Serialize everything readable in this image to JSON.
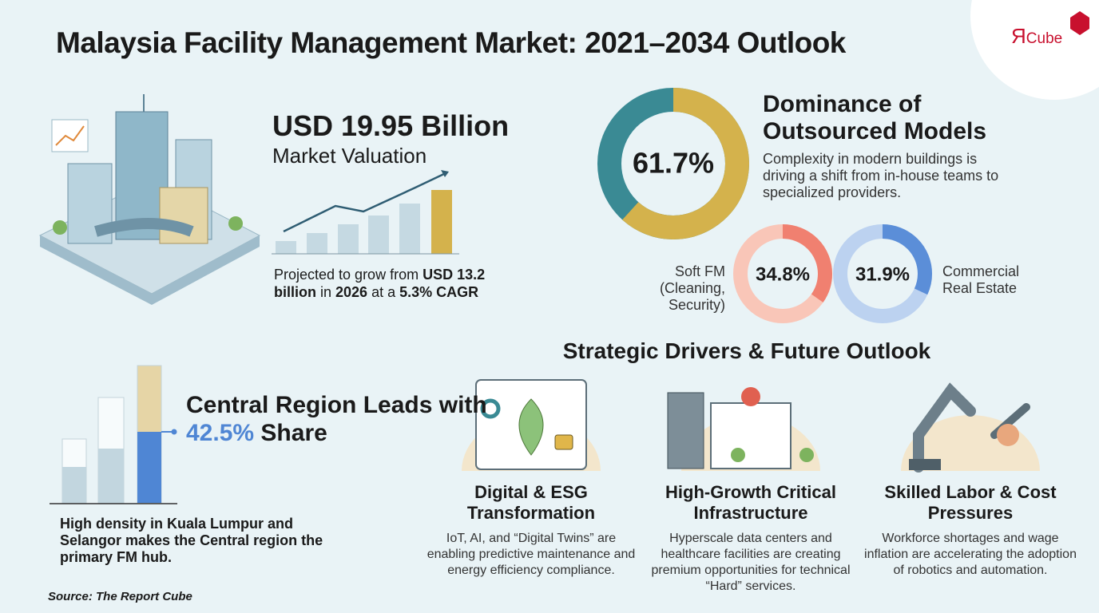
{
  "title": "Malaysia Facility Management Market: 2021–2034 Outlook",
  "logo": {
    "mark": "Я",
    "text": "Cube"
  },
  "valuation": {
    "amount": "USD 19.95 Billion",
    "label": "Market Valuation",
    "note": [
      "Projected to grow from ",
      "USD 13.2 billion",
      " in ",
      "2026",
      " at a ",
      "5.3% CAGR"
    ]
  },
  "outsourced": {
    "title": "Dominance of Outsourced Models",
    "text": "Complexity in modern buildings is driving a shift from in-house teams to specialized providers.",
    "share": {
      "value": 61.7,
      "label": "61.7%"
    }
  },
  "soft_fm": {
    "label": "Soft FM (Cleaning, Security)",
    "share": {
      "value": 34.8,
      "label": "34.8%"
    }
  },
  "commercial": {
    "label": "Commercial Real Estate",
    "share": {
      "value": 31.9,
      "label": "31.9%"
    }
  },
  "region": {
    "heading": "Central Region Leads with",
    "highlight": "42.5%",
    "suffix": "Share",
    "text": "High density in Kuala Lumpur and Selangor makes the Central region the primary FM hub."
  },
  "drivers": {
    "title": "Strategic Drivers & Future Outlook",
    "items": [
      {
        "title": "Digital & ESG Transformation",
        "text": "IoT, AI, and “Digital Twins” are enabling predictive maintenance and energy efficiency compliance."
      },
      {
        "title": "High-Growth Critical Infrastructure",
        "text": "Hyperscale data centers and healthcare facilities are creating premium opportunities for technical “Hard” services."
      },
      {
        "title": "Skilled Labor & Cost Pressures",
        "text": "Workforce shortages and wage inflation are accelerating the adoption of robotics and automation."
      }
    ]
  },
  "source": "Source: The Report Cube"
}
